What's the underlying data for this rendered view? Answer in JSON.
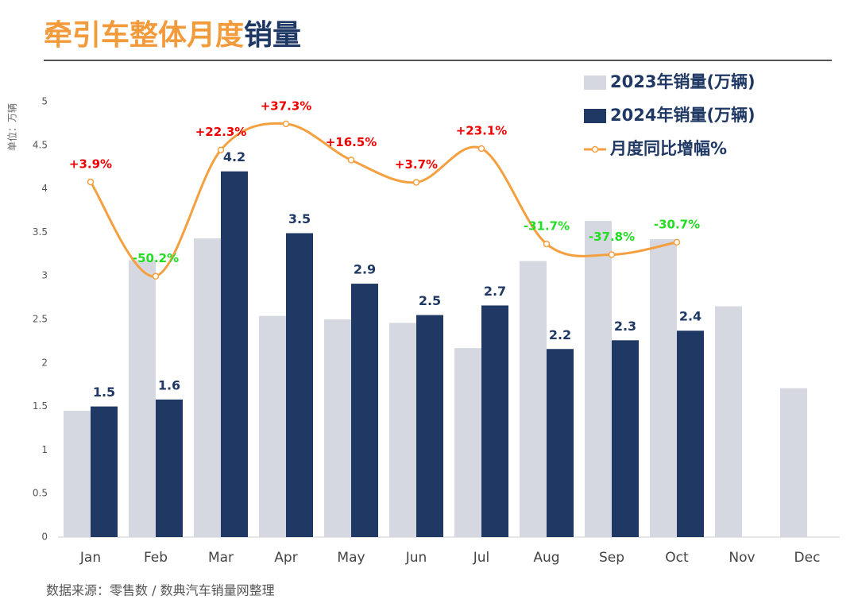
{
  "chart_data": {
    "type": "bar",
    "title": [
      {
        "text": "牵引车整体月度",
        "color": "#f39a3b"
      },
      {
        "text": "销量",
        "color": "#1f3864"
      }
    ],
    "y_label": "单位：万辆",
    "source": "数据来源：零售数 / 数典汽车销量网整理",
    "categories": [
      "Jan",
      "Feb",
      "Mar",
      "Apr",
      "May",
      "Jun",
      "Jul",
      "Aug",
      "Sep",
      "Oct",
      "Nov",
      "Dec"
    ],
    "ylim": [
      0,
      5
    ],
    "yticks": [
      0,
      0.5,
      1,
      1.5,
      2,
      2.5,
      3,
      3.5,
      4,
      4.5,
      5
    ],
    "y2lim": [
      -200,
      50
    ],
    "series": [
      {
        "name": "2023年销量(万辆)",
        "color": "#d5d8e0",
        "values": [
          1.45,
          3.18,
          3.43,
          2.54,
          2.5,
          2.46,
          2.17,
          3.17,
          3.63,
          3.42,
          2.65,
          1.71
        ]
      },
      {
        "name": "2024年销量(万辆)",
        "color": "#1f3864",
        "values": [
          1.5,
          1.58,
          4.2,
          3.49,
          2.91,
          2.55,
          2.66,
          2.16,
          2.26,
          2.37,
          null,
          null
        ],
        "value_labels": [
          "1.5",
          "1.6",
          "4.2",
          "3.5",
          "2.9",
          "2.5",
          "2.7",
          "2.2",
          "2.3",
          "2.4",
          null,
          null
        ]
      },
      {
        "name": "月度同比增幅%",
        "color": "#f5a040",
        "type": "line",
        "axis": "y2",
        "values": [
          3.9,
          -50.2,
          22.3,
          37.3,
          16.5,
          3.7,
          23.1,
          -31.7,
          -37.8,
          -30.7,
          null,
          null
        ],
        "value_labels": [
          "+3.9%",
          "-50.2%",
          "+22.3%",
          "+37.3%",
          "+16.5%",
          "+3.7%",
          "+23.1%",
          "-31.7%",
          "-37.8%",
          "-30.7%",
          null,
          null
        ]
      }
    ]
  }
}
